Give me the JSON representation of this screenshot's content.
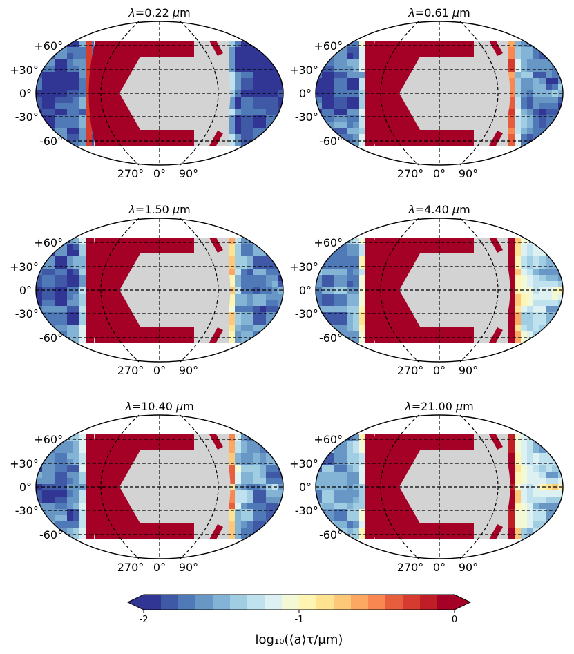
{
  "chart_data": {
    "type": "heatmap",
    "figure": "Projected maps of log10 mean cloud particle size at six wavelengths",
    "panel_title_prefix": "λ=",
    "panel_title_unit": "μm",
    "panels": [
      {
        "wavelength": "0.22",
        "style": {
          "hot": 0.02,
          "glow": 0.6,
          "east_band": 0.0
        }
      },
      {
        "wavelength": "0.61",
        "style": {
          "hot": 0.05,
          "glow": 1.3,
          "east_band": 0.7
        }
      },
      {
        "wavelength": "1.50",
        "style": {
          "hot": 0.25,
          "glow": 1.0,
          "east_band": 0.3
        }
      },
      {
        "wavelength": "4.40",
        "style": {
          "hot": 0.55,
          "glow": 1.6,
          "east_band": 1.0
        }
      },
      {
        "wavelength": "10.40",
        "style": {
          "hot": 0.3,
          "glow": 1.1,
          "east_band": 0.5
        }
      },
      {
        "wavelength": "21.00",
        "style": {
          "hot": 0.35,
          "glow": 1.2,
          "east_band": 1.2
        }
      }
    ],
    "latitude_ticks": [
      "+60°",
      "+30°",
      "0°",
      "-30°",
      "-60°"
    ],
    "latitude_values": [
      60,
      30,
      0,
      -30,
      -60
    ],
    "longitude_ticks": [
      "270°",
      "0°",
      "90°"
    ],
    "longitude_values": [
      270,
      0,
      90
    ],
    "masked_region_color": "#d3d3d3",
    "colorbar": {
      "label": "log₁₀(⟨a⟩τ/μm)",
      "ticks": [
        "-2",
        "-1",
        "0"
      ],
      "tick_values": [
        -2,
        -1,
        0
      ],
      "range": [
        -2,
        0
      ],
      "extend": "both",
      "colors": [
        "#313695",
        "#3f59a6",
        "#4f7ab7",
        "#6897c5",
        "#83b3d5",
        "#a1cde3",
        "#c0e2ee",
        "#ddf1f3",
        "#f2f9d4",
        "#fff5b2",
        "#fee491",
        "#fdc979",
        "#fca862",
        "#f88752",
        "#e75e3f",
        "#d63b2f",
        "#c01e27",
        "#a50026"
      ],
      "under_color": "#313695",
      "over_color": "#a50026"
    }
  }
}
